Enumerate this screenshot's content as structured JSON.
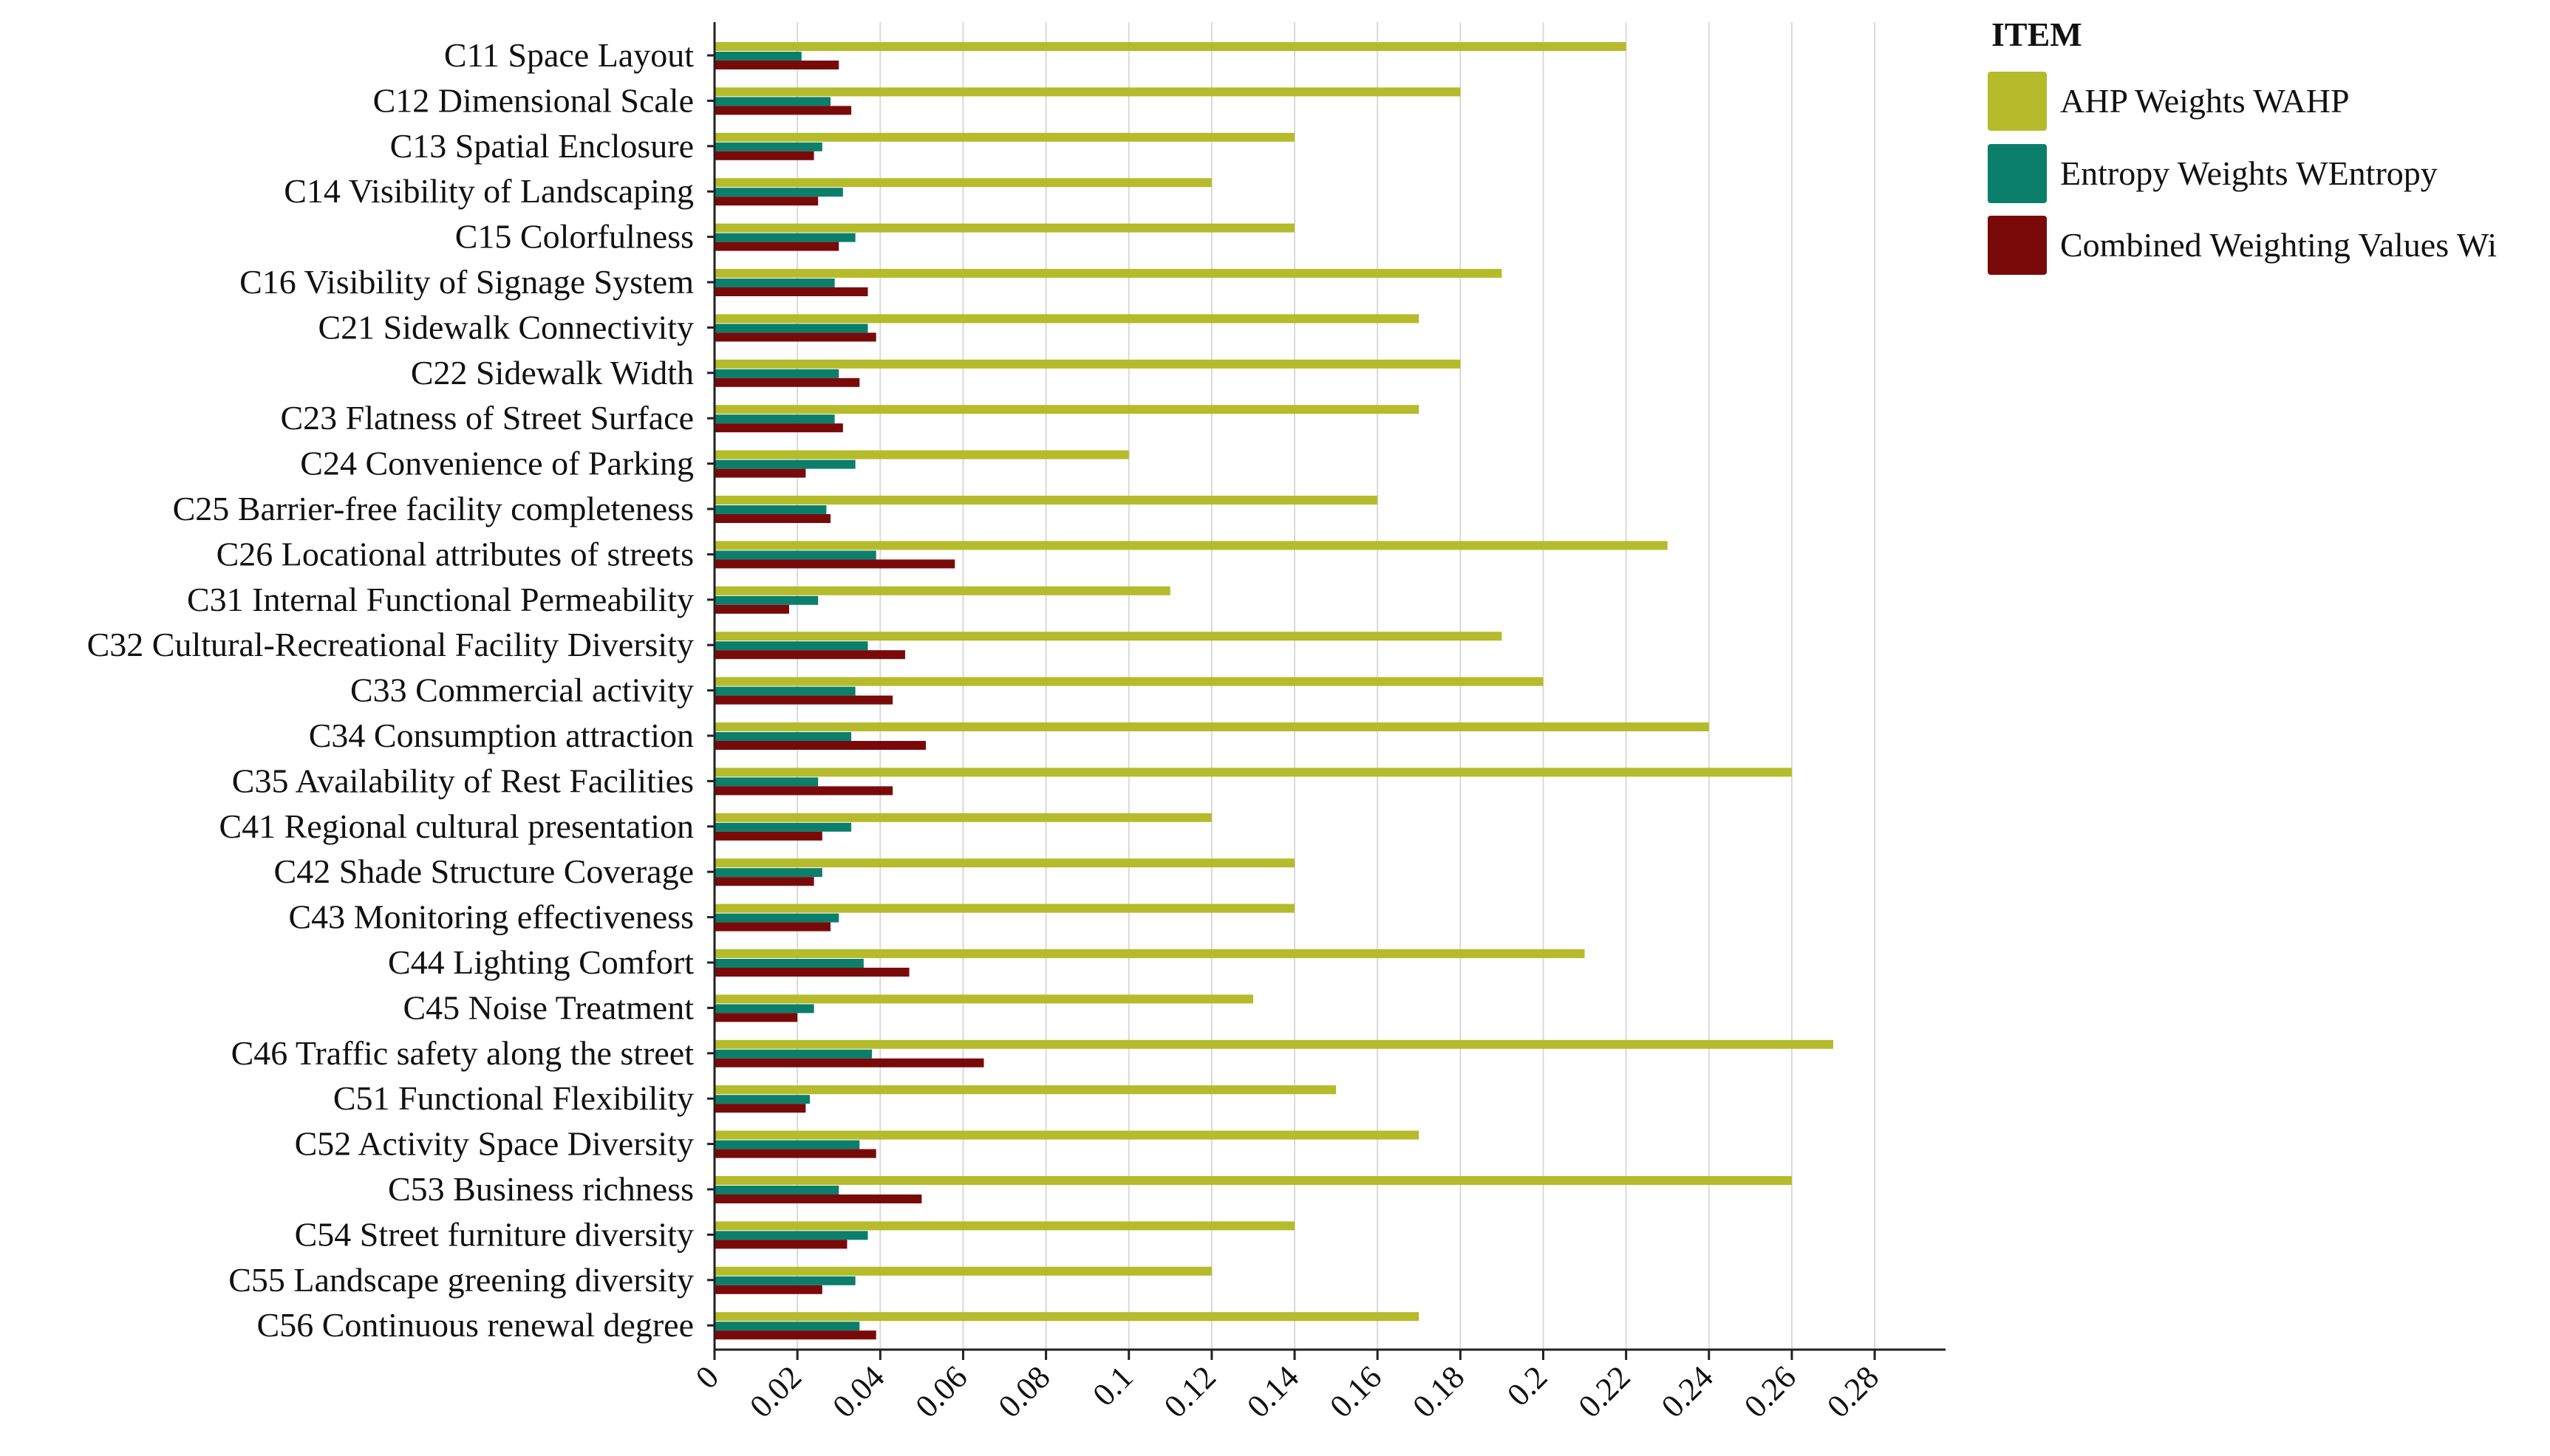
{
  "chart_data": {
    "type": "bar",
    "orientation": "horizontal",
    "title": "",
    "xlabel": "",
    "ylabel": "",
    "xlim": [
      0,
      0.29
    ],
    "x_ticks": [
      0,
      0.02,
      0.04,
      0.06,
      0.08,
      0.1,
      0.12,
      0.14,
      0.16,
      0.18,
      0.2,
      0.22,
      0.24,
      0.26,
      0.28
    ],
    "x_tick_labels": [
      "0",
      "0.02",
      "0.04",
      "0.06",
      "0.08",
      "0.1",
      "0.12",
      "0.14",
      "0.16",
      "0.18",
      "0.2",
      "0.22",
      "0.24",
      "0.26",
      "0.28"
    ],
    "grid": true,
    "legend_title": "ITEM",
    "legend_position": "top-right",
    "categories": [
      "C11 Space Layout",
      "C12 Dimensional Scale",
      "C13 Spatial Enclosure",
      "C14 Visibility of Landscaping",
      "C15 Colorfulness",
      "C16 Visibility of Signage System",
      "C21 Sidewalk Connectivity",
      "C22 Sidewalk Width",
      "C23 Flatness of Street Surface",
      "C24 Convenience of Parking",
      "C25 Barrier-free facility completeness",
      "C26 Locational attributes of streets",
      "C31 Internal Functional Permeability",
      "C32 Cultural-Recreational Facility Diversity",
      "C33 Commercial activity",
      "C34 Consumption attraction",
      "C35 Availability of Rest Facilities",
      "C41 Regional cultural presentation",
      "C42 Shade Structure Coverage",
      "C43 Monitoring effectiveness",
      "C44 Lighting Comfort",
      "C45 Noise Treatment",
      "C46 Traffic safety along the street",
      "C51 Functional Flexibility",
      "C52 Activity Space Diversity",
      "C53 Business richness",
      "C54 Street furniture diversity",
      "C55 Landscape greening diversity",
      "C56 Continuous renewal degree"
    ],
    "series": [
      {
        "name": "AHP Weights WAHP",
        "color": "#b5bb2b",
        "values": [
          0.22,
          0.18,
          0.14,
          0.12,
          0.14,
          0.19,
          0.17,
          0.18,
          0.17,
          0.1,
          0.16,
          0.23,
          0.11,
          0.19,
          0.2,
          0.24,
          0.26,
          0.12,
          0.14,
          0.14,
          0.21,
          0.13,
          0.27,
          0.15,
          0.17,
          0.26,
          0.14,
          0.12,
          0.17
        ]
      },
      {
        "name": "Entropy Weights WEntropy",
        "color": "#0b7f6b",
        "values": [
          0.021,
          0.028,
          0.026,
          0.031,
          0.034,
          0.029,
          0.037,
          0.03,
          0.029,
          0.034,
          0.027,
          0.039,
          0.025,
          0.037,
          0.034,
          0.033,
          0.025,
          0.033,
          0.026,
          0.03,
          0.036,
          0.024,
          0.038,
          0.023,
          0.035,
          0.03,
          0.037,
          0.034,
          0.035
        ]
      },
      {
        "name": "Combined Weighting Values Wi",
        "color": "#7a0a0a",
        "values": [
          0.03,
          0.033,
          0.024,
          0.025,
          0.03,
          0.037,
          0.039,
          0.035,
          0.031,
          0.022,
          0.028,
          0.058,
          0.018,
          0.046,
          0.043,
          0.051,
          0.043,
          0.026,
          0.024,
          0.028,
          0.047,
          0.02,
          0.065,
          0.022,
          0.039,
          0.05,
          0.032,
          0.026,
          0.039
        ]
      }
    ]
  }
}
